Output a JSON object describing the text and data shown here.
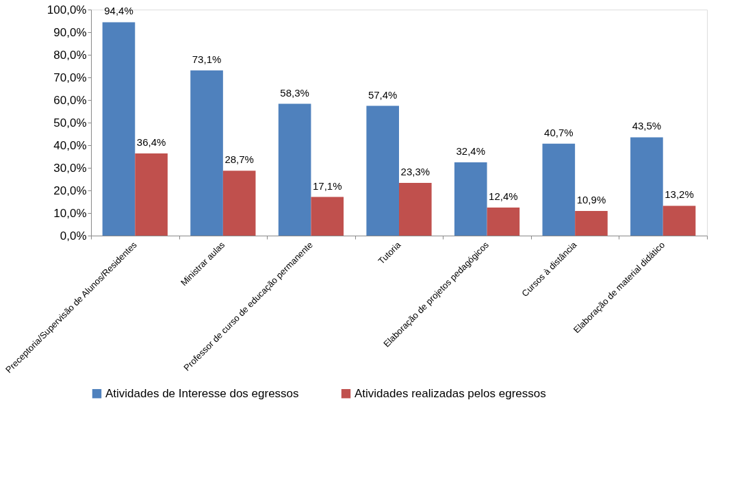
{
  "chart_data": {
    "type": "bar",
    "categories": [
      "Preceptoria/Supervisão de Alunos/Residentes",
      "Ministrar aulas",
      "Professor de curso de educação permanente",
      "Tutoria",
      "Elaboração de projetos pedagógicos",
      "Cursos à distância",
      "Elaboração de material didático"
    ],
    "series": [
      {
        "name": "Atividades de Interesse dos egressos",
        "color": "#4f81bd",
        "values": [
          94.4,
          73.1,
          58.3,
          57.4,
          32.4,
          40.7,
          43.5
        ],
        "value_labels": [
          "94,4%",
          "73,1%",
          "58,3%",
          "57,4%",
          "32,4%",
          "40,7%",
          "43,5%"
        ]
      },
      {
        "name": "Atividades realizadas pelos egressos",
        "color": "#c0504d",
        "values": [
          36.4,
          28.7,
          17.1,
          23.3,
          12.4,
          10.9,
          13.2
        ],
        "value_labels": [
          "36,4%",
          "28,7%",
          "17,1%",
          "23,3%",
          "12,4%",
          "10,9%",
          "13,2%"
        ]
      }
    ],
    "ylim": [
      0,
      100
    ],
    "yticks": [
      {
        "value": 0,
        "label": "0,0%"
      },
      {
        "value": 10,
        "label": "10,0%"
      },
      {
        "value": 20,
        "label": "20,0%"
      },
      {
        "value": 30,
        "label": "30,0%"
      },
      {
        "value": 40,
        "label": "40,0%"
      },
      {
        "value": 50,
        "label": "50,0%"
      },
      {
        "value": 60,
        "label": "60,0%"
      },
      {
        "value": 70,
        "label": "70,0%"
      },
      {
        "value": 80,
        "label": "80,0%"
      },
      {
        "value": 90,
        "label": "90,0%"
      },
      {
        "value": 100,
        "label": "100,0%"
      }
    ],
    "grid": false,
    "legend": "bottom"
  }
}
